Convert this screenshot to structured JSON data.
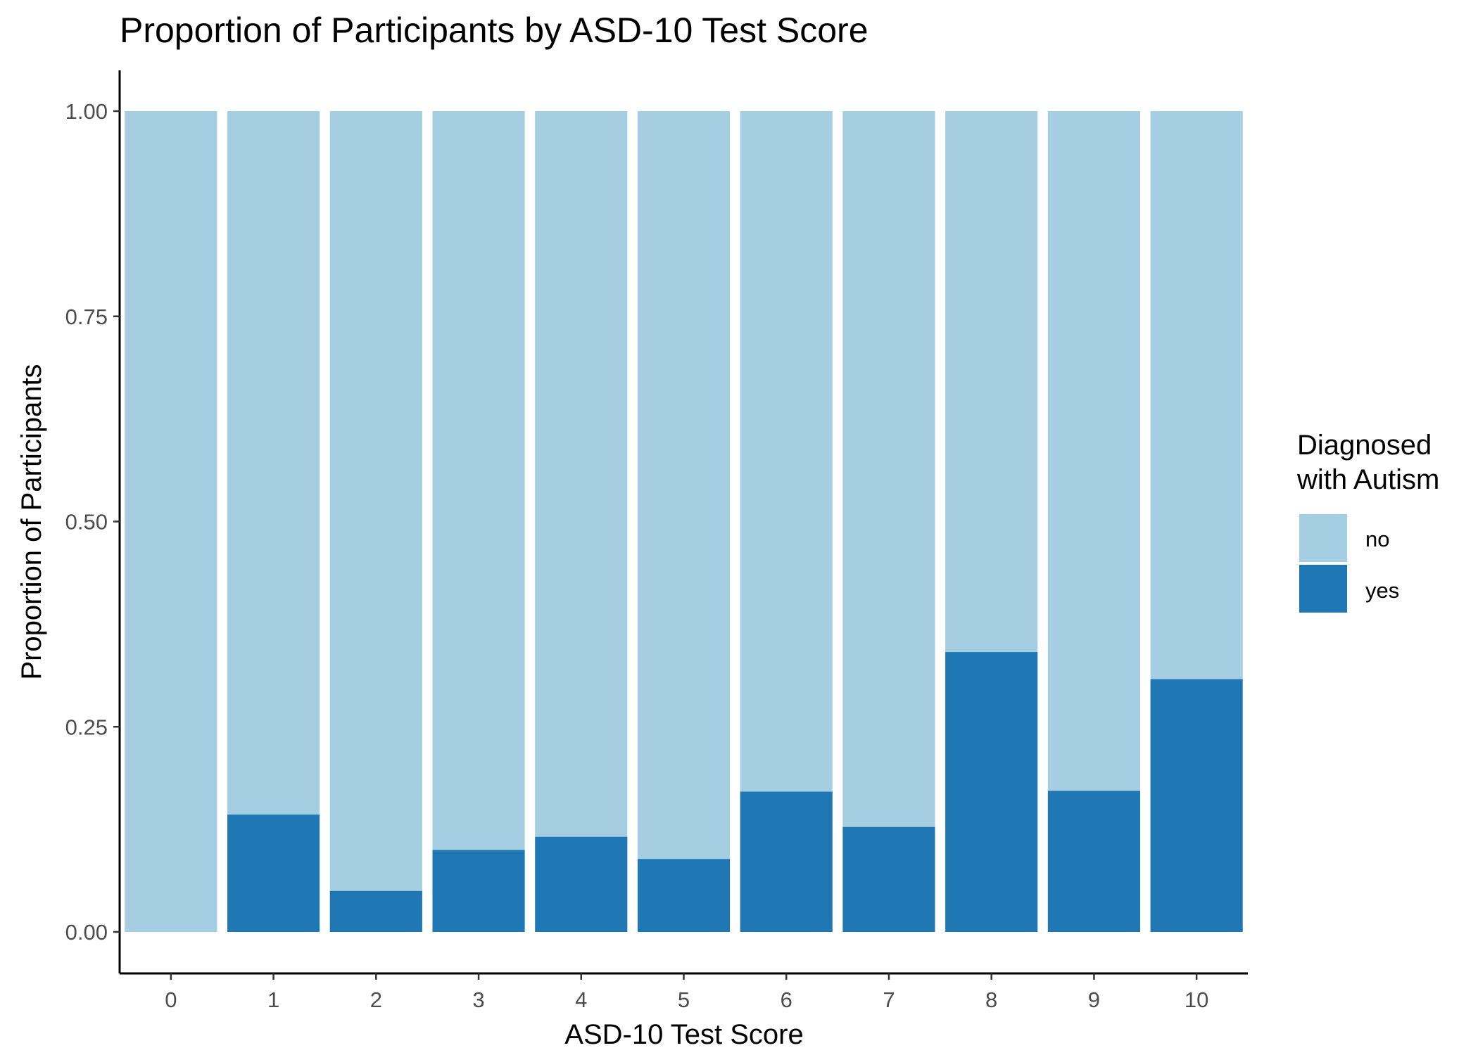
{
  "chart_data": {
    "type": "bar",
    "stacked": true,
    "title": "Proportion of Participants by ASD-10 Test Score",
    "xlabel": "ASD-10 Test Score",
    "ylabel": "Proportion of Participants",
    "categories": [
      "0",
      "1",
      "2",
      "3",
      "4",
      "5",
      "6",
      "7",
      "8",
      "9",
      "10"
    ],
    "ylim": [
      0,
      1
    ],
    "yticks": [
      "0.00",
      "0.25",
      "0.50",
      "0.75",
      "1.00"
    ],
    "grid": false,
    "legend": {
      "title_lines": [
        "Diagnosed",
        "with Autism"
      ],
      "position": "right"
    },
    "series": [
      {
        "name": "no",
        "color": "#a6cee3",
        "values": [
          1.0,
          0.857,
          0.95,
          0.9,
          0.884,
          0.911,
          0.829,
          0.872,
          0.659,
          0.828,
          0.692
        ]
      },
      {
        "name": "yes",
        "color": "#1f78b4",
        "values": [
          0.0,
          0.143,
          0.05,
          0.1,
          0.116,
          0.089,
          0.171,
          0.128,
          0.341,
          0.172,
          0.308
        ]
      }
    ]
  }
}
